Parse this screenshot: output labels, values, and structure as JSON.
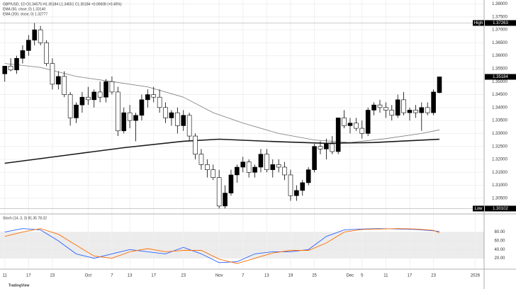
{
  "chart_data": {
    "type": "candlestick",
    "header": "GBP/USD, 1D O1.34575 H1.35184 L1.34551 C1.35184 +0.00608 (+0.45%)",
    "legend": [
      "EMA (50, close, 0) 1.33140",
      "EMA (200, close, 0) 1.32777"
    ],
    "up_color": "#000000",
    "down_color": "#ffffff",
    "grid": true,
    "xlim": [
      -0.8,
      80.5
    ],
    "xticks": [
      {
        "value": 0,
        "label": "11"
      },
      {
        "value": 4,
        "label": "17"
      },
      {
        "value": 8,
        "label": "23"
      },
      {
        "value": 14,
        "label": "Oct"
      },
      {
        "value": 18,
        "label": "7"
      },
      {
        "value": 21,
        "label": "13"
      },
      {
        "value": 25,
        "label": "17"
      },
      {
        "value": 30,
        "label": "23"
      },
      {
        "value": 36,
        "label": "Nov"
      },
      {
        "value": 40,
        "label": "7"
      },
      {
        "value": 44,
        "label": "13"
      },
      {
        "value": 48,
        "label": "19"
      },
      {
        "value": 52,
        "label": "25"
      },
      {
        "value": 58,
        "label": "Dec"
      },
      {
        "value": 60,
        "label": "5"
      },
      {
        "value": 64,
        "label": "11"
      },
      {
        "value": 68,
        "label": "17"
      },
      {
        "value": 72,
        "label": "23"
      },
      {
        "value": 79,
        "label": "2026"
      }
    ],
    "ylim": [
      1.2995,
      1.3815
    ],
    "yticks": [
      {
        "value": 1.305,
        "label": "1.30500"
      },
      {
        "value": 1.31,
        "label": "1.31000"
      },
      {
        "value": 1.315,
        "label": "1.31500"
      },
      {
        "value": 1.32,
        "label": "1.32000"
      },
      {
        "value": 1.325,
        "label": "1.32500"
      },
      {
        "value": 1.33,
        "label": "1.33000"
      },
      {
        "value": 1.335,
        "label": "1.33500"
      },
      {
        "value": 1.34,
        "label": "1.34000"
      },
      {
        "value": 1.345,
        "label": "1.34500"
      },
      {
        "value": 1.35,
        "label": "1.35000"
      },
      {
        "value": 1.355,
        "label": "1.35500"
      },
      {
        "value": 1.36,
        "label": "1.36000"
      },
      {
        "value": 1.365,
        "label": "1.36500"
      },
      {
        "value": 1.37,
        "label": "1.37000"
      },
      {
        "value": 1.375,
        "label": "1.37500"
      },
      {
        "value": 1.38,
        "label": "1.38000"
      }
    ],
    "candles": [
      [
        1.353,
        1.356,
        1.35,
        1.356
      ],
      [
        1.356,
        1.359,
        1.354,
        1.3545
      ],
      [
        1.3545,
        1.36,
        1.353,
        1.359
      ],
      [
        1.359,
        1.364,
        1.357,
        1.362
      ],
      [
        1.362,
        1.368,
        1.36,
        1.366
      ],
      [
        1.366,
        1.37263,
        1.364,
        1.37
      ],
      [
        1.37,
        1.3715,
        1.364,
        1.365
      ],
      [
        1.365,
        1.366,
        1.356,
        1.357
      ],
      [
        1.357,
        1.359,
        1.347,
        1.349
      ],
      [
        1.349,
        1.354,
        1.347,
        1.352
      ],
      [
        1.352,
        1.354,
        1.344,
        1.345
      ],
      [
        1.345,
        1.346,
        1.333,
        1.336
      ],
      [
        1.336,
        1.342,
        1.334,
        1.341
      ],
      [
        1.341,
        1.346,
        1.338,
        1.344
      ],
      [
        1.344,
        1.348,
        1.341,
        1.343
      ],
      [
        1.343,
        1.347,
        1.34,
        1.346
      ],
      [
        1.346,
        1.35,
        1.342,
        1.344
      ],
      [
        1.344,
        1.351,
        1.342,
        1.35
      ],
      [
        1.35,
        1.352,
        1.345,
        1.346
      ],
      [
        1.346,
        1.348,
        1.329,
        1.331
      ],
      [
        1.331,
        1.34,
        1.33,
        1.338
      ],
      [
        1.338,
        1.341,
        1.332,
        1.335
      ],
      [
        1.335,
        1.338,
        1.327,
        1.337
      ],
      [
        1.337,
        1.345,
        1.335,
        1.343
      ],
      [
        1.343,
        1.347,
        1.34,
        1.345
      ],
      [
        1.345,
        1.348,
        1.342,
        1.344
      ],
      [
        1.344,
        1.347,
        1.338,
        1.34
      ],
      [
        1.34,
        1.342,
        1.334,
        1.336
      ],
      [
        1.336,
        1.339,
        1.333,
        1.338
      ],
      [
        1.338,
        1.34,
        1.33,
        1.333
      ],
      [
        1.333,
        1.339,
        1.331,
        1.337
      ],
      [
        1.337,
        1.338,
        1.327,
        1.329
      ],
      [
        1.329,
        1.33,
        1.32,
        1.322
      ],
      [
        1.322,
        1.324,
        1.316,
        1.318
      ],
      [
        1.318,
        1.32,
        1.313,
        1.316
      ],
      [
        1.316,
        1.318,
        1.312,
        1.313
      ],
      [
        1.313,
        1.316,
        1.30102,
        1.302
      ],
      [
        1.302,
        1.31,
        1.301,
        1.307
      ],
      [
        1.307,
        1.316,
        1.306,
        1.314
      ],
      [
        1.314,
        1.318,
        1.311,
        1.317
      ],
      [
        1.317,
        1.321,
        1.315,
        1.319
      ],
      [
        1.319,
        1.32,
        1.313,
        1.315
      ],
      [
        1.315,
        1.318,
        1.313,
        1.317
      ],
      [
        1.317,
        1.324,
        1.315,
        1.322
      ],
      [
        1.322,
        1.324,
        1.315,
        1.316
      ],
      [
        1.316,
        1.32,
        1.313,
        1.318
      ],
      [
        1.318,
        1.32,
        1.315,
        1.317
      ],
      [
        1.317,
        1.319,
        1.312,
        1.314
      ],
      [
        1.314,
        1.316,
        1.304,
        1.306
      ],
      [
        1.306,
        1.31,
        1.304,
        1.308
      ],
      [
        1.308,
        1.312,
        1.306,
        1.311
      ],
      [
        1.311,
        1.317,
        1.31,
        1.316
      ],
      [
        1.316,
        1.326,
        1.315,
        1.325
      ],
      [
        1.325,
        1.327,
        1.322,
        1.324
      ],
      [
        1.324,
        1.328,
        1.32,
        1.326
      ],
      [
        1.326,
        1.329,
        1.322,
        1.323
      ],
      [
        1.323,
        1.336,
        1.322,
        1.336
      ],
      [
        1.336,
        1.339,
        1.332,
        1.333
      ],
      [
        1.333,
        1.336,
        1.33,
        1.334
      ],
      [
        1.334,
        1.336,
        1.331,
        1.332
      ],
      [
        1.332,
        1.335,
        1.328,
        1.33
      ],
      [
        1.33,
        1.34,
        1.329,
        1.339
      ],
      [
        1.339,
        1.342,
        1.337,
        1.341
      ],
      [
        1.341,
        1.343,
        1.338,
        1.34
      ],
      [
        1.34,
        1.342,
        1.336,
        1.339
      ],
      [
        1.339,
        1.341,
        1.335,
        1.337
      ],
      [
        1.337,
        1.345,
        1.336,
        1.343
      ],
      [
        1.343,
        1.346,
        1.337,
        1.338
      ],
      [
        1.338,
        1.34,
        1.335,
        1.339
      ],
      [
        1.339,
        1.341,
        1.336,
        1.338
      ],
      [
        1.338,
        1.342,
        1.331,
        1.34
      ],
      [
        1.34,
        1.342,
        1.337,
        1.338
      ],
      [
        1.338,
        1.347,
        1.337,
        1.346
      ],
      [
        1.34575,
        1.35184,
        1.34551,
        1.35184
      ]
    ],
    "overlays": [
      {
        "name": "EMA (50)",
        "color": "#787878",
        "width": 0.8,
        "x": [
          0,
          6,
          12,
          18,
          24,
          30,
          35,
          40,
          46,
          52,
          58,
          64,
          70,
          73
        ],
        "values": [
          1.357,
          1.3555,
          1.352,
          1.35,
          1.348,
          1.344,
          1.338,
          1.334,
          1.33,
          1.3275,
          1.3265,
          1.328,
          1.33,
          1.3314
        ]
      },
      {
        "name": "EMA (200)",
        "color": "#1a1a1a",
        "width": 1.6,
        "x": [
          0,
          10,
          20,
          30,
          36,
          46,
          54,
          62,
          73
        ],
        "values": [
          1.3185,
          1.3215,
          1.3245,
          1.327,
          1.3278,
          1.3268,
          1.3262,
          1.3265,
          1.32777
        ]
      }
    ],
    "high": {
      "text": "High",
      "value": 1.37263,
      "label": "1.37263"
    },
    "low": {
      "text": "Low",
      "value": 1.30102,
      "label": "1.30102"
    },
    "last_price": {
      "value": 1.35184,
      "label": "1.35184"
    },
    "stoch": {
      "legend": "Stoch (14, 3, 3) 81.35 78.32",
      "ylim": [
        -5,
        120
      ],
      "band": [
        20,
        80
      ],
      "yticks": [
        {
          "value": 20,
          "label": "20.00"
        },
        {
          "value": 40,
          "label": "40.00"
        },
        {
          "value": 60,
          "label": "60.00"
        },
        {
          "value": 80,
          "label": "80.00"
        }
      ],
      "series": [
        {
          "name": "%K",
          "color": "#2962ff",
          "x": [
            0,
            3,
            6,
            9,
            12,
            15,
            18,
            21,
            24,
            27,
            30,
            33,
            36,
            39,
            42,
            45,
            48,
            51,
            54,
            57,
            60,
            63,
            66,
            69,
            72,
            73
          ],
          "values": [
            80,
            88,
            85,
            60,
            30,
            20,
            30,
            40,
            35,
            30,
            45,
            30,
            10,
            12,
            30,
            35,
            35,
            40,
            70,
            85,
            87,
            88,
            87,
            86,
            83,
            81.35
          ]
        },
        {
          "name": "%D",
          "color": "#ff6d00",
          "x": [
            0,
            3,
            6,
            9,
            12,
            15,
            18,
            21,
            24,
            27,
            30,
            33,
            36,
            39,
            42,
            45,
            48,
            51,
            54,
            57,
            60,
            63,
            66,
            69,
            72,
            73
          ],
          "values": [
            70,
            80,
            88,
            75,
            50,
            25,
            20,
            35,
            42,
            35,
            38,
            38,
            18,
            8,
            20,
            32,
            38,
            38,
            55,
            80,
            86,
            87,
            88,
            87,
            84,
            78.32
          ]
        }
      ]
    },
    "brand": "TradingView"
  }
}
